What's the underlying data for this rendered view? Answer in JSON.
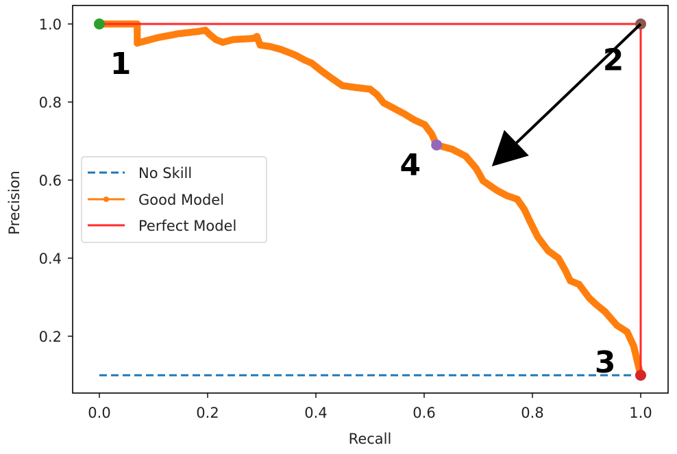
{
  "chart_data": {
    "type": "line",
    "title": "",
    "xlabel": "Recall",
    "ylabel": "Precision",
    "xlim": [
      -0.05,
      1.05
    ],
    "ylim": [
      0.06,
      1.045
    ],
    "grid": false,
    "xticks": [
      0.0,
      0.2,
      0.4,
      0.6,
      0.8,
      1.0
    ],
    "xtick_labels": [
      "0.0",
      "0.2",
      "0.4",
      "0.6",
      "0.8",
      "1.0"
    ],
    "yticks": [
      0.2,
      0.4,
      0.6,
      0.8,
      1.0
    ],
    "ytick_labels": [
      "0.2",
      "0.4",
      "0.6",
      "0.8",
      "1.0"
    ],
    "legend_position": "center left",
    "series": [
      {
        "name": "No Skill",
        "style": "dashed",
        "color": "#1f77b4",
        "x": [
          0.0,
          1.0
        ],
        "y": [
          0.1,
          0.1
        ]
      },
      {
        "name": "Good Model",
        "style": "solid-with-dot-markers",
        "color": "#ff7f0e",
        "x": [
          0.0,
          0.07,
          0.07,
          0.108,
          0.146,
          0.184,
          0.196,
          0.203,
          0.215,
          0.228,
          0.247,
          0.285,
          0.291,
          0.297,
          0.316,
          0.335,
          0.361,
          0.38,
          0.392,
          0.411,
          0.43,
          0.449,
          0.475,
          0.5,
          0.513,
          0.525,
          0.544,
          0.563,
          0.582,
          0.601,
          0.614,
          0.623,
          0.652,
          0.677,
          0.696,
          0.709,
          0.734,
          0.753,
          0.772,
          0.785,
          0.797,
          0.81,
          0.829,
          0.848,
          0.861,
          0.87,
          0.886,
          0.905,
          0.918,
          0.934,
          0.956,
          0.975,
          0.987,
          1.0
        ],
        "y": [
          1.0,
          1.0,
          0.951,
          0.965,
          0.975,
          0.981,
          0.984,
          0.974,
          0.96,
          0.953,
          0.96,
          0.963,
          0.968,
          0.946,
          0.942,
          0.935,
          0.921,
          0.907,
          0.9,
          0.879,
          0.86,
          0.842,
          0.837,
          0.833,
          0.819,
          0.798,
          0.784,
          0.77,
          0.754,
          0.742,
          0.718,
          0.69,
          0.679,
          0.661,
          0.63,
          0.598,
          0.574,
          0.56,
          0.551,
          0.525,
          0.49,
          0.454,
          0.419,
          0.4,
          0.368,
          0.342,
          0.333,
          0.298,
          0.281,
          0.263,
          0.228,
          0.211,
          0.175,
          0.1
        ]
      },
      {
        "name": "Perfect Model",
        "style": "solid",
        "color": "#ff2a2a",
        "x": [
          0.0,
          1.0,
          1.0
        ],
        "y": [
          1.0,
          1.0,
          0.1
        ]
      }
    ],
    "highlight_points": [
      {
        "x": 0.0,
        "y": 1.0,
        "color": "#2ca02c"
      },
      {
        "x": 1.0,
        "y": 1.0,
        "color": "#8c564b"
      },
      {
        "x": 1.0,
        "y": 0.1,
        "color": "#d62728"
      },
      {
        "x": 0.623,
        "y": 0.69,
        "color": "#9467bd"
      }
    ],
    "annotations": [
      {
        "text": "1",
        "x": 0.02,
        "y": 0.9
      },
      {
        "text": "2",
        "x": 0.93,
        "y": 0.91
      },
      {
        "text": "3",
        "x": 0.915,
        "y": 0.135
      },
      {
        "text": "4",
        "x": 0.555,
        "y": 0.64
      }
    ],
    "arrow": {
      "from": [
        1.0,
        1.0
      ],
      "to": [
        0.725,
        0.635
      ],
      "color": "#000000"
    }
  }
}
